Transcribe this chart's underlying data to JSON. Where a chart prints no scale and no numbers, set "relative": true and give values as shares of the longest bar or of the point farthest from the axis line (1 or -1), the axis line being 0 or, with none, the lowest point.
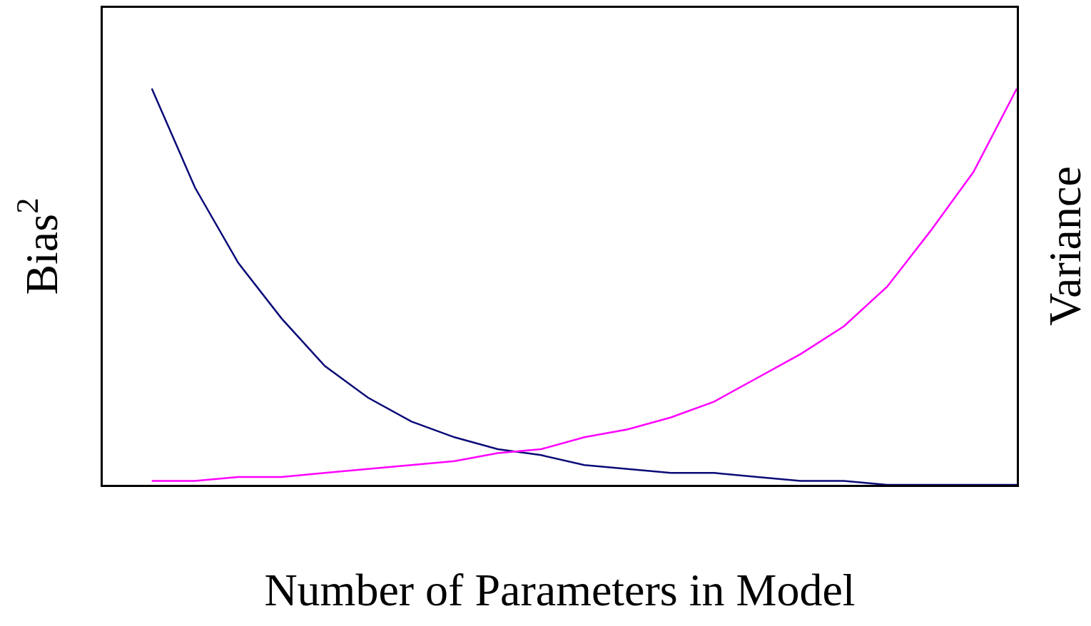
{
  "chart_data": {
    "type": "line",
    "relative": true,
    "xlabel": "Number of Parameters in Model",
    "ylabel": "Bias$^{2}$",
    "y2label": "Variance",
    "marker": "none",
    "line_style": "solid",
    "categories": [
      null,
      null,
      null,
      null,
      null,
      null,
      null,
      null,
      null,
      null,
      null,
      null,
      null,
      null,
      null,
      null,
      null,
      null,
      null,
      null,
      null
    ],
    "series": [
      {
        "color": "#0a0a78",
        "values": [
          1.0,
          0.75,
          0.56,
          0.42,
          0.3,
          0.22,
          0.16,
          0.12,
          0.09,
          0.075,
          0.05,
          0.04,
          0.03,
          0.03,
          0.02,
          0.01,
          0.01,
          0.0,
          0.0,
          0.0,
          0.0
        ]
      },
      {
        "color": "#ff00ff",
        "values": [
          0.01,
          0.01,
          0.02,
          0.02,
          0.03,
          0.04,
          0.05,
          0.06,
          0.08,
          0.09,
          0.12,
          0.14,
          0.17,
          0.21,
          0.27,
          0.33,
          0.4,
          0.5,
          0.64,
          0.79,
          1.0
        ]
      }
    ]
  }
}
